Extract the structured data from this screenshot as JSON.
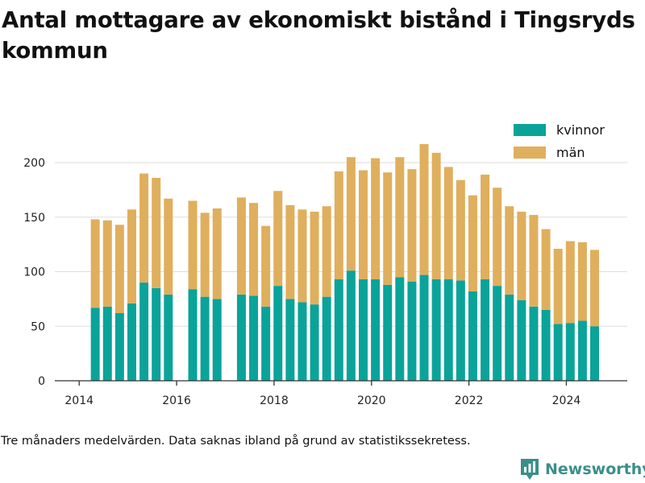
{
  "title": "Antal mottagare av ekonomiskt bistånd i Tingsryds kommun",
  "caption": "Tre månaders medelvärden. Data saknas ibland på grund av statistikssekretess.",
  "brand": {
    "name": "Newsworthy",
    "color": "#3a8f8a"
  },
  "colors": {
    "kvinnor": "#0aa39a",
    "man": "#dfaf5d",
    "grid": "#dddddd",
    "axis": "#333333"
  },
  "chart_data": {
    "type": "bar",
    "stacked": true,
    "title": "Antal mottagare av ekonomiskt bistånd i Tingsryds kommun",
    "xlim": [
      2013.5,
      2025.25
    ],
    "ylim": [
      0,
      225
    ],
    "x_ticks": [
      2014,
      2016,
      2018,
      2020,
      2022,
      2024
    ],
    "y_ticks": [
      0,
      50,
      100,
      150,
      200
    ],
    "grid": true,
    "legend_position": "top-right",
    "x": [
      2014.33,
      2014.58,
      2014.83,
      2015.08,
      2015.33,
      2015.58,
      2015.83,
      2016.33,
      2016.58,
      2016.83,
      2017.33,
      2017.58,
      2017.83,
      2018.08,
      2018.33,
      2018.58,
      2018.83,
      2019.08,
      2019.33,
      2019.58,
      2019.83,
      2020.08,
      2020.33,
      2020.58,
      2020.83,
      2021.08,
      2021.33,
      2021.58,
      2021.83,
      2022.08,
      2022.33,
      2022.58,
      2022.83,
      2023.08,
      2023.33,
      2023.58,
      2023.83,
      2024.08,
      2024.33,
      2024.58
    ],
    "series": [
      {
        "name": "kvinnor",
        "color": "#0aa39a",
        "values": [
          67,
          68,
          62,
          71,
          90,
          85,
          79,
          84,
          77,
          75,
          79,
          78,
          68,
          87,
          75,
          72,
          70,
          77,
          93,
          101,
          93,
          93,
          88,
          95,
          91,
          97,
          93,
          93,
          92,
          82,
          93,
          87,
          79,
          74,
          68,
          65,
          52,
          53,
          55,
          50
        ]
      },
      {
        "name": "män",
        "color": "#dfaf5d",
        "values": [
          81,
          79,
          81,
          86,
          100,
          101,
          88,
          81,
          77,
          83,
          89,
          85,
          74,
          87,
          86,
          85,
          85,
          83,
          99,
          104,
          100,
          111,
          103,
          110,
          103,
          120,
          116,
          103,
          92,
          88,
          96,
          90,
          81,
          81,
          84,
          74,
          69,
          75,
          72,
          70
        ]
      }
    ]
  }
}
